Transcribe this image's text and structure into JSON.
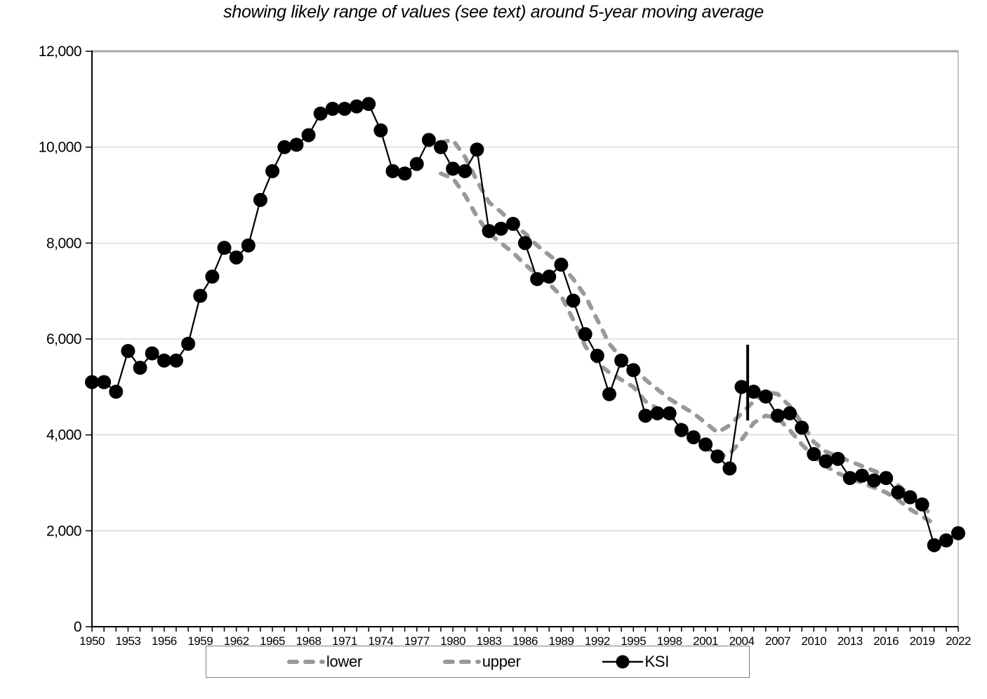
{
  "chart_data": {
    "type": "line",
    "title": "showing likely range of values (see text) around 5-year moving average",
    "xlabel": "",
    "ylabel": "",
    "ylim": [
      0,
      12000
    ],
    "ytick_step": 2000,
    "yticks": [
      "0",
      "2,000",
      "4,000",
      "6,000",
      "8,000",
      "10,000",
      "12,000"
    ],
    "x_range": [
      1950,
      2022
    ],
    "x_label_every": 3,
    "xticks": [
      "1950",
      "1953",
      "1956",
      "1959",
      "1962",
      "1965",
      "1968",
      "1971",
      "1974",
      "1977",
      "1980",
      "1983",
      "1986",
      "1989",
      "1992",
      "1995",
      "1998",
      "2001",
      "2004",
      "2007",
      "2010",
      "2013",
      "2016",
      "2019",
      "2022"
    ],
    "grid": true,
    "legend_position": "bottom",
    "colors": {
      "ksi": "#000000",
      "band": "#999999",
      "grid": "#c9c9c9",
      "frame": "#a6a6a6",
      "axis": "#000000"
    },
    "series": [
      {
        "name": "lower",
        "style": "dashed",
        "color": "#999999",
        "start_year": 1979,
        "values": [
          9450,
          9350,
          9000,
          8550,
          8200,
          8000,
          7800,
          7550,
          7350,
          7150,
          6900,
          6400,
          5850,
          5500,
          5300,
          5150,
          5000,
          4700,
          4550,
          4400,
          4200,
          4000,
          3750,
          3550,
          3600,
          3900,
          4250,
          4400,
          4350,
          4100,
          3800,
          3550,
          3350,
          3200,
          3100,
          3000,
          2900,
          2800,
          2650,
          2450,
          2300,
          2150
        ]
      },
      {
        "name": "upper",
        "style": "dashed",
        "color": "#999999",
        "start_year": 1979,
        "values": [
          10100,
          10150,
          9800,
          9300,
          8850,
          8650,
          8400,
          8200,
          7950,
          7750,
          7550,
          7250,
          6900,
          6400,
          5900,
          5600,
          5450,
          5150,
          4950,
          4750,
          4600,
          4450,
          4250,
          4050,
          4200,
          4450,
          4700,
          4900,
          4850,
          4600,
          4250,
          3850,
          3650,
          3550,
          3450,
          3350,
          3250,
          3150,
          2950,
          2750,
          2500,
          2300
        ]
      },
      {
        "name": "KSI",
        "style": "line-markers",
        "color": "#000000",
        "start_year": 1950,
        "values": [
          5100,
          5100,
          4900,
          5750,
          5400,
          5700,
          5550,
          5550,
          5900,
          6900,
          7300,
          7900,
          7700,
          7950,
          8900,
          9500,
          10000,
          10050,
          10250,
          10700,
          10800,
          10800,
          10850,
          10900,
          10350,
          9500,
          9450,
          9650,
          10150,
          10000,
          9550,
          9500,
          9950,
          8250,
          8300,
          8400,
          8000,
          7250,
          7300,
          7550,
          6800,
          6100,
          5650,
          4850,
          5550,
          5350,
          4400,
          4450,
          4450,
          4100,
          3950,
          3800,
          3550,
          3300,
          5000,
          4900,
          4800,
          4400,
          4450,
          4150,
          3600,
          3450,
          3500,
          3100,
          3150,
          3050,
          3100,
          2800,
          2700,
          2550,
          1700,
          1800,
          1950
        ]
      }
    ],
    "annotation": {
      "type": "vertical-line",
      "x_year": 2004.5,
      "y_from": 4300,
      "y_to": 5880,
      "color": "#000000"
    }
  }
}
